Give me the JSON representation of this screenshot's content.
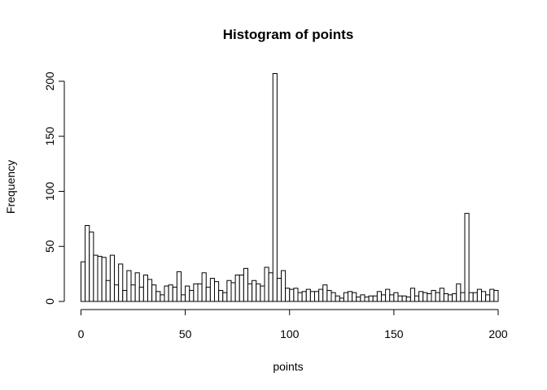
{
  "chart_data": {
    "type": "bar",
    "title": "Histogram of points",
    "xlabel": "points",
    "ylabel": "Frequency",
    "xlim": [
      0,
      200
    ],
    "ylim": [
      0,
      200
    ],
    "x_ticks": [
      0,
      50,
      100,
      150,
      200
    ],
    "y_ticks": [
      0,
      50,
      100,
      150,
      200
    ],
    "bin_width": 2,
    "bin_start": 0,
    "values": [
      36,
      69,
      63,
      42,
      41,
      40,
      19,
      42,
      15,
      34,
      10,
      28,
      15,
      26,
      13,
      24,
      20,
      15,
      9,
      6,
      14,
      15,
      13,
      27,
      6,
      14,
      10,
      16,
      16,
      26,
      13,
      21,
      18,
      10,
      8,
      19,
      17,
      24,
      24,
      30,
      16,
      19,
      16,
      14,
      31,
      26,
      207,
      21,
      28,
      12,
      11,
      12,
      8,
      9,
      11,
      9,
      9,
      11,
      15,
      10,
      8,
      5,
      3,
      8,
      9,
      8,
      4,
      6,
      4,
      5,
      5,
      9,
      6,
      11,
      6,
      8,
      5,
      5,
      4,
      12,
      5,
      9,
      8,
      7,
      10,
      8,
      12,
      7,
      6,
      7,
      16,
      8,
      80,
      8,
      8,
      11,
      9,
      6,
      11,
      10
    ],
    "grid": false,
    "legend": "none"
  }
}
